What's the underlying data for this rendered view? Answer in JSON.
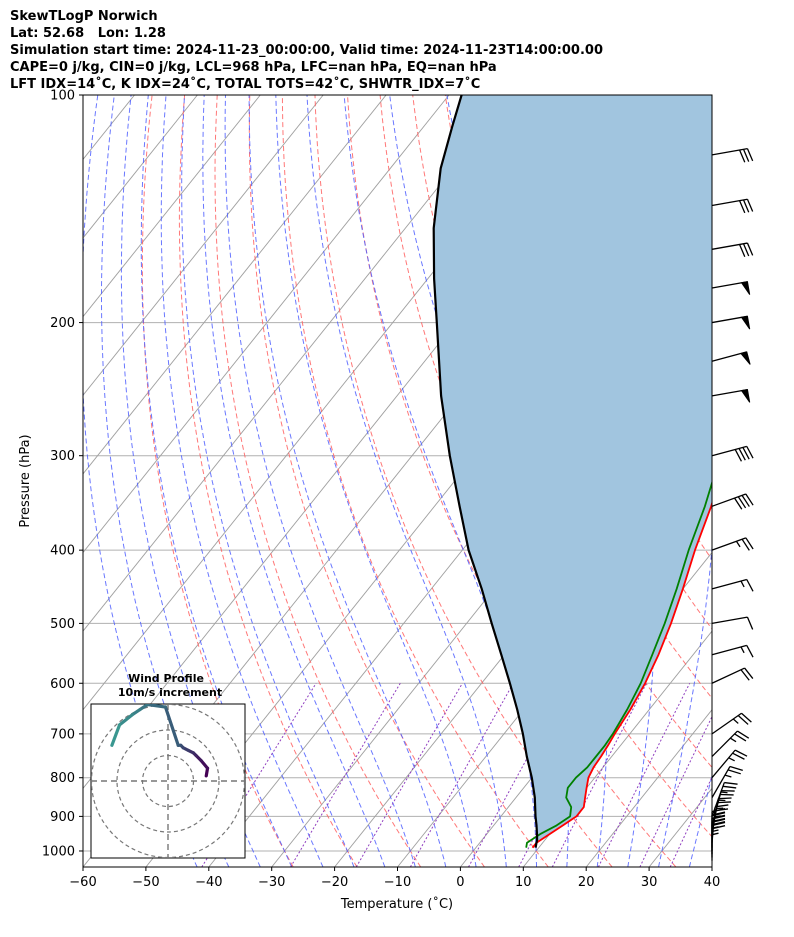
{
  "header": {
    "line1": "SkewTLogP Norwich",
    "line2": "Lat: 52.68   Lon: 1.28",
    "line3": "Simulation start time: 2024-11-23_00:00:00, Valid time: 2024-11-23T14:00:00.00",
    "line4": "CAPE=0 j/kg, CIN=0 j/kg, LCL=968 hPa, LFC=nan hPa, EQ=nan hPa",
    "line5": "LFT IDX=14$^\\circ$C, K IDX=24$^\\circ$C, TOTAL TOTS=42$^\\circ$C, SHWTR_IDX=7$^\\circ$C"
  },
  "chart_data": {
    "type": "line",
    "title": "SkewTLogP Norwich",
    "xlabel": "Temperature ($^\\circ$C)",
    "ylabel": "Pressure (hPa)",
    "xlim": [
      -60,
      40
    ],
    "ylim": [
      1050,
      100
    ],
    "y_scale": "log",
    "x_ticks": [
      "−60",
      "−50",
      "−40",
      "−30",
      "−20",
      "−10",
      "0",
      "10",
      "20",
      "30",
      "40"
    ],
    "y_ticks": [
      "1000",
      "900",
      "800",
      "700",
      "600",
      "500",
      "400",
      "300",
      "200",
      "100"
    ],
    "grid": true,
    "colors": {
      "temperature": "#ff0000",
      "dewpoint": "#008000",
      "parcel": "#000000",
      "shade": "#a1c5df",
      "isotherm": "#a0a0a0",
      "dry_adiabat": "#ff6060",
      "moist_adiabat": "#5060ff",
      "mixing_ratio": "#9040c0"
    },
    "series": [
      {
        "key": "temperature",
        "pressure": [
          990,
          975,
          950,
          925,
          900,
          875,
          850,
          825,
          800,
          775,
          750,
          725,
          700,
          650,
          600,
          550,
          500,
          450,
          400,
          350,
          300,
          250,
          225,
          200,
          190,
          180,
          175,
          170,
          165,
          160,
          150,
          140,
          125,
          110,
          100
        ],
        "temp": [
          9,
          9,
          10,
          11,
          12,
          12,
          11,
          10,
          9,
          8.5,
          8.3,
          8,
          7.6,
          7,
          6,
          4.5,
          2.5,
          0,
          -3,
          -6,
          -10,
          -14,
          -16.5,
          -19,
          -20,
          -20.5,
          -20.5,
          -19.5,
          -17,
          -14,
          -10.5,
          -7,
          -4,
          -1,
          2
        ]
      },
      {
        "key": "dewpoint",
        "pressure": [
          990,
          975,
          950,
          925,
          900,
          875,
          850,
          825,
          800,
          775,
          750,
          725,
          700,
          650,
          600,
          550,
          500,
          450,
          400,
          350,
          300,
          250,
          225,
          200,
          190,
          180,
          175,
          170,
          165,
          160,
          150,
          140,
          125,
          110,
          100
        ],
        "temp": [
          8,
          7.5,
          8.5,
          10,
          11,
          10,
          8,
          7,
          7,
          7.5,
          7.5,
          7.5,
          7.3,
          6.5,
          5.3,
          3.5,
          1.5,
          -1,
          -4,
          -7,
          -11,
          -15,
          -18.5,
          -21,
          -22,
          -22,
          -21.5,
          -20.5,
          -20,
          -21,
          -21,
          -19,
          -14,
          -7,
          -2
        ]
      },
      {
        "key": "parcel",
        "pressure": [
          990,
          975,
          968,
          950,
          925,
          900,
          850,
          800,
          750,
          700,
          650,
          600,
          550,
          500,
          450,
          400,
          350,
          300,
          250,
          200,
          175,
          150,
          125,
          110,
          100
        ],
        "temp": [
          9.5,
          9,
          8.8,
          8,
          6.8,
          5.5,
          3,
          0,
          -3.5,
          -7,
          -11,
          -15.5,
          -20.5,
          -26,
          -32,
          -39,
          -46,
          -54,
          -63,
          -73,
          -79,
          -85.5,
          -92,
          -95.5,
          -98
        ]
      }
    ],
    "wind_barbs": [
      {
        "pressure": 120,
        "speed_kt": 30,
        "direction_deg": 260
      },
      {
        "pressure": 140,
        "speed_kt": 30,
        "direction_deg": 260
      },
      {
        "pressure": 160,
        "speed_kt": 30,
        "direction_deg": 260
      },
      {
        "pressure": 180,
        "speed_kt": 50,
        "direction_deg": 260
      },
      {
        "pressure": 200,
        "speed_kt": 50,
        "direction_deg": 260
      },
      {
        "pressure": 225,
        "speed_kt": 50,
        "direction_deg": 255
      },
      {
        "pressure": 250,
        "speed_kt": 50,
        "direction_deg": 260
      },
      {
        "pressure": 300,
        "speed_kt": 40,
        "direction_deg": 255
      },
      {
        "pressure": 350,
        "speed_kt": 40,
        "direction_deg": 250
      },
      {
        "pressure": 400,
        "speed_kt": 25,
        "direction_deg": 250
      },
      {
        "pressure": 450,
        "speed_kt": 15,
        "direction_deg": 255
      },
      {
        "pressure": 500,
        "speed_kt": 10,
        "direction_deg": 260
      },
      {
        "pressure": 550,
        "speed_kt": 15,
        "direction_deg": 255
      },
      {
        "pressure": 600,
        "speed_kt": 20,
        "direction_deg": 245
      },
      {
        "pressure": 700,
        "speed_kt": 25,
        "direction_deg": 235
      },
      {
        "pressure": 750,
        "speed_kt": 25,
        "direction_deg": 225
      },
      {
        "pressure": 800,
        "speed_kt": 25,
        "direction_deg": 220
      },
      {
        "pressure": 850,
        "speed_kt": 25,
        "direction_deg": 210
      },
      {
        "pressure": 900,
        "speed_kt": 25,
        "direction_deg": 200
      },
      {
        "pressure": 925,
        "speed_kt": 25,
        "direction_deg": 195
      },
      {
        "pressure": 950,
        "speed_kt": 25,
        "direction_deg": 190
      },
      {
        "pressure": 975,
        "speed_kt": 25,
        "direction_deg": 185
      },
      {
        "pressure": 990,
        "speed_kt": 25,
        "direction_deg": 180
      },
      {
        "pressure": 1000,
        "speed_kt": 25,
        "direction_deg": 180
      },
      {
        "pressure": 1010,
        "speed_kt": 25,
        "direction_deg": 180
      },
      {
        "pressure": 1020,
        "speed_kt": 25,
        "direction_deg": 180
      },
      {
        "pressure": 1030,
        "speed_kt": 25,
        "direction_deg": 180
      }
    ],
    "hodograph": {
      "title_line1": "Wind Profile",
      "title_line2": "10m/s increment",
      "ring_speeds_ms": [
        10,
        20,
        30
      ],
      "u": [
        15,
        15.5,
        13,
        11,
        10,
        8,
        6,
        5,
        4,
        -1,
        -8,
        -11,
        -14,
        -19,
        -22
      ],
      "v": [
        2,
        5,
        8,
        10,
        11,
        12,
        13,
        14,
        14,
        29,
        30,
        28,
        26,
        22,
        14
      ]
    }
  }
}
